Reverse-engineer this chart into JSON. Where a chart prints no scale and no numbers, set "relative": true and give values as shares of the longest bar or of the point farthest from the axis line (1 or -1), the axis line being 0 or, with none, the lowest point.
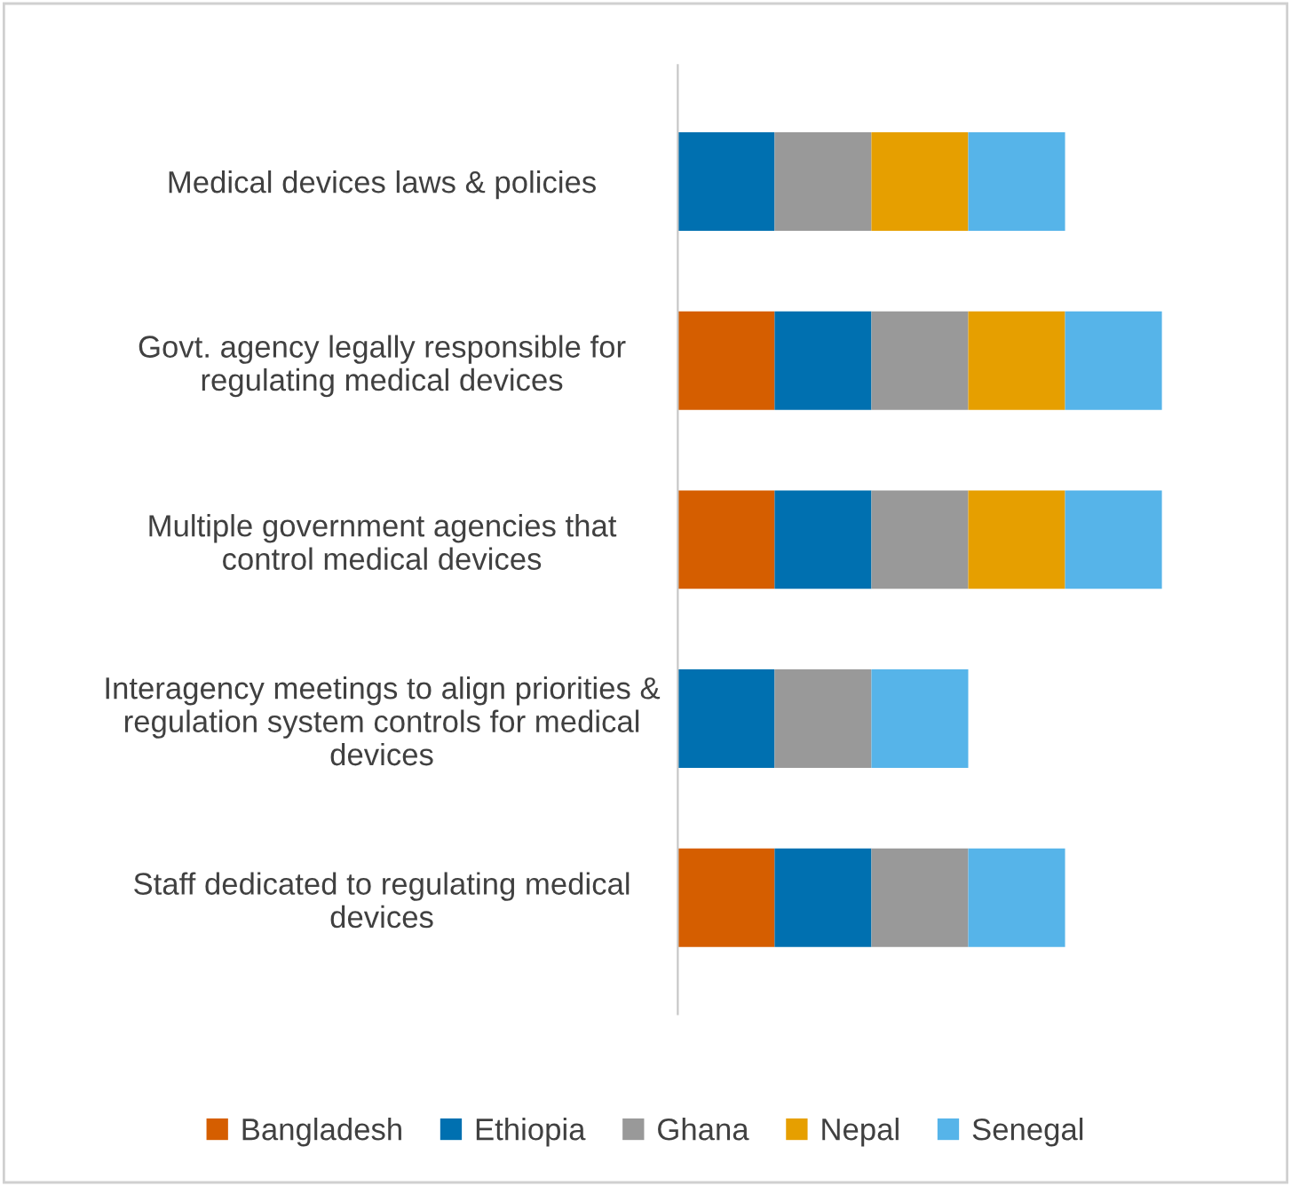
{
  "chart_data": {
    "type": "bar",
    "orientation": "horizontal",
    "stacked": true,
    "relative": true,
    "legend": "bottom",
    "grid": false,
    "categories": [
      "Medical devices laws & policies",
      "Govt. agency legally responsible for\nregulating medical devices",
      "Multiple government agencies that\ncontrol medical devices",
      "Interagency meetings to align priorities &\nregulation system controls for medical\ndevices",
      "Staff dedicated to regulating medical\ndevices"
    ],
    "series": [
      {
        "name": "Bangladesh",
        "color": "#d55e00",
        "values": [
          null,
          0.2,
          0.2,
          null,
          0.2
        ]
      },
      {
        "name": "Ethiopia",
        "color": "#0070b0",
        "values": [
          0.2,
          0.2,
          0.2,
          0.2,
          0.2
        ]
      },
      {
        "name": "Ghana",
        "color": "#999999",
        "values": [
          0.2,
          0.2,
          0.2,
          0.2,
          0.2
        ]
      },
      {
        "name": "Nepal",
        "color": "#e69f00",
        "values": [
          0.2,
          0.2,
          0.2,
          null,
          null
        ]
      },
      {
        "name": "Senegal",
        "color": "#56b4e9",
        "values": [
          0.2,
          0.2,
          0.2,
          0.2,
          0.2
        ]
      }
    ]
  }
}
